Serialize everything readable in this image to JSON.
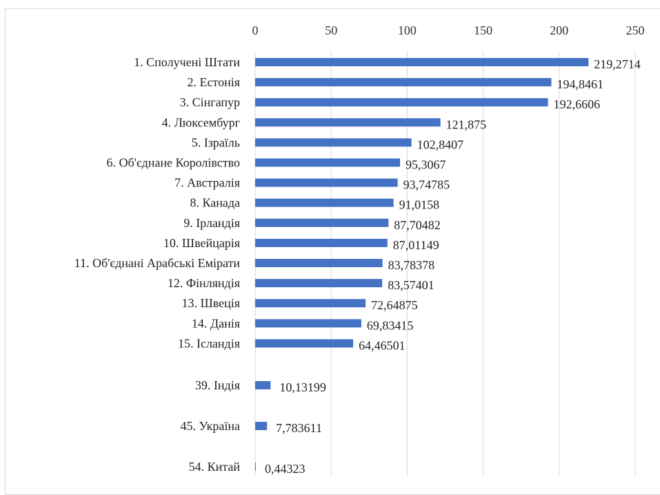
{
  "chart_data": {
    "type": "bar",
    "orientation": "horizontal",
    "title": "",
    "xlabel": "",
    "ylabel": "",
    "xlim": [
      0,
      250
    ],
    "x_ticks": [
      "0",
      "50",
      "100",
      "150",
      "200",
      "250"
    ],
    "x_axis_position": "top",
    "grid": true,
    "legend": "none",
    "bar_color": "#4472C4",
    "grid_color": "#d9d9d9",
    "categories": [
      "1. Сполучені Штати",
      "2. Естонія",
      "3. Сінгапур",
      "4. Люксембург",
      "5. Ізраїль",
      "6. Об'єднане Королівство",
      "7. Австралія",
      "8. Канада",
      "9. Ірландія",
      "10. Швейцарія",
      "11. Об'єднані Арабські Емірати",
      "12. Фінляндія",
      "13. Швеція",
      "14. Данія",
      "15. Ісландія",
      "39. Індія",
      "45. Україна",
      "54. Китай"
    ],
    "values": [
      219.2714,
      194.8461,
      192.6606,
      121.875,
      102.8407,
      95.3067,
      93.74785,
      91.0158,
      87.70482,
      87.01149,
      83.78378,
      83.57401,
      72.64875,
      69.83415,
      64.46501,
      10.13199,
      7.783611,
      0.44323
    ],
    "data_labels": [
      "219,2714",
      "194,8461",
      "192,6606",
      "121,875",
      "102,8407",
      "95,3067",
      "93,74785",
      "91,0158",
      "87,70482",
      "87,01149",
      "83,78378",
      "83,57401",
      "72,64875",
      "69,83415",
      "64,46501",
      "10,13199",
      "7,783611",
      "0,44323"
    ]
  }
}
